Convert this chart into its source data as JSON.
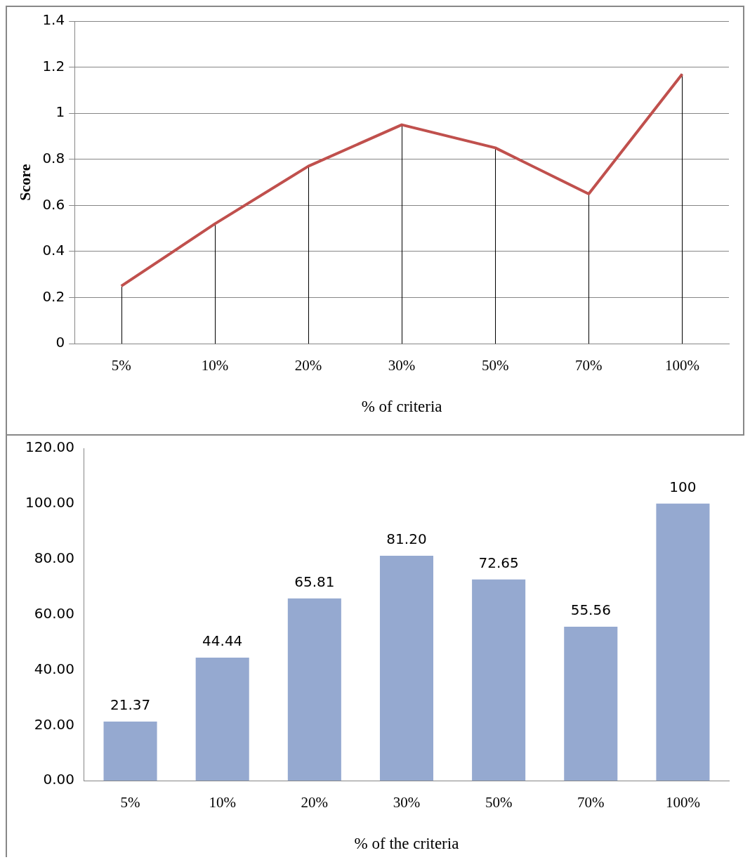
{
  "chart_data": [
    {
      "type": "line",
      "ylabel": "Score",
      "xlabel": "% of criteria",
      "categories": [
        "5%",
        "10%",
        "20%",
        "30%",
        "50%",
        "70%",
        "100%"
      ],
      "series": [
        {
          "color": "#c0504d",
          "values": [
            0.25,
            0.52,
            0.77,
            0.95,
            0.85,
            0.65,
            1.17
          ],
          "errors": [
            [
              0,
              0.25
            ],
            [
              0,
              0.52
            ],
            [
              0,
              0.77
            ],
            [
              0,
              0.95
            ],
            [
              0,
              0.85
            ],
            [
              0,
              0.65
            ],
            [
              0,
              1.17
            ]
          ]
        }
      ],
      "ylim": [
        0,
        1.4
      ],
      "yticks": [
        0,
        0.2,
        0.4,
        0.6,
        0.8,
        1,
        1.2,
        1.4
      ],
      "grid": "y",
      "legend": false,
      "marker": "none"
    },
    {
      "type": "bar",
      "xlabel": "% of the criteria",
      "categories": [
        "5%",
        "10%",
        "20%",
        "30%",
        "50%",
        "70%",
        "100%"
      ],
      "series": [
        {
          "color": "#95a9d0",
          "values": [
            21.37,
            44.44,
            65.81,
            81.2,
            72.65,
            55.56,
            100
          ],
          "value_labels": [
            "21.37",
            "44.44",
            "65.81",
            "81.20",
            "72.65",
            "55.56",
            "100"
          ]
        }
      ],
      "ylim": [
        0,
        120
      ],
      "yticks": [
        {
          "value": 0,
          "label": "0.00"
        },
        {
          "value": 20,
          "label": "20.00"
        },
        {
          "value": 40,
          "label": "40.00"
        },
        {
          "value": 60,
          "label": "60.00"
        },
        {
          "value": 80,
          "label": "80.00"
        },
        {
          "value": 100,
          "label": "100.00"
        },
        {
          "value": 120,
          "label": "120.00"
        }
      ],
      "grid": false,
      "legend": false
    }
  ]
}
